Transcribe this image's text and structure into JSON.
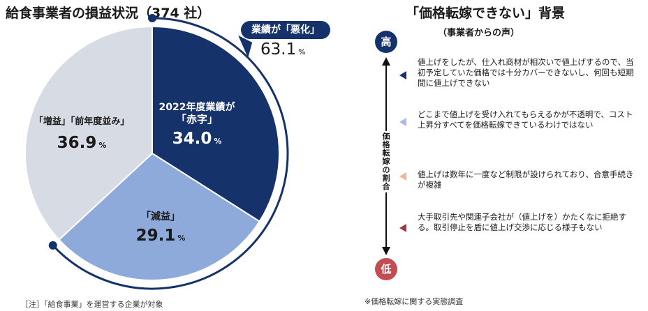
{
  "title": "給食事業者の損益状況（374 社）",
  "chart_data": {
    "type": "pie",
    "title": "給食事業者の損益状況（374 社）",
    "unit": "%",
    "slices": [
      {
        "label": "2022年度業績が「赤字」",
        "line1": "2022年度業績が",
        "line2": "「赤字」",
        "value": 34.0,
        "value_text": "34.0",
        "color": "#16326a"
      },
      {
        "label": "「減益」",
        "line1": "「減益」",
        "line2": "",
        "value": 29.1,
        "value_text": "29.1",
        "color": "#8eaadb"
      },
      {
        "label": "「増益」「前年度並み」",
        "line1": "「増益」「前年度並み」",
        "line2": "",
        "value": 36.9,
        "value_text": "36.9",
        "color": "#d7dbe4"
      }
    ],
    "callout": {
      "label": "業績が「悪化」",
      "value": 63.1,
      "value_text": "63.1",
      "color": "#16326a"
    }
  },
  "footnote": "［注］「給食事業」を運営する企業が対象",
  "reasons": {
    "title": "「価格転嫁できない」背景",
    "subtitle": "（事業者からの声）",
    "high_label": "高",
    "low_label": "低",
    "axis_label": "価格転嫁の割合",
    "items": [
      {
        "text": "値上げをしたが、仕入れ商材が相次いで値上げするので、当初予定していた価格では十分カバーできないし、何回も短期間に値上げできない",
        "color": "#16326a"
      },
      {
        "text": "どこまで値上げを受け入れてもらえるかが不透明で、コスト上昇分すべてを価格転嫁できているわけではない",
        "color": "#aabbe0"
      },
      {
        "text": "値上げは数年に一度など制限が設けられており、合意手続きが複雑",
        "color": "#f1b598"
      },
      {
        "text": "大手取引先や関連子会社が（値上げを）かたくなに拒絶する。取引停止を盾に値上げ交渉に応じる様子もない",
        "color": "#9b3b43"
      }
    ],
    "survey_note": "※価格転嫁に関する実態調査"
  }
}
